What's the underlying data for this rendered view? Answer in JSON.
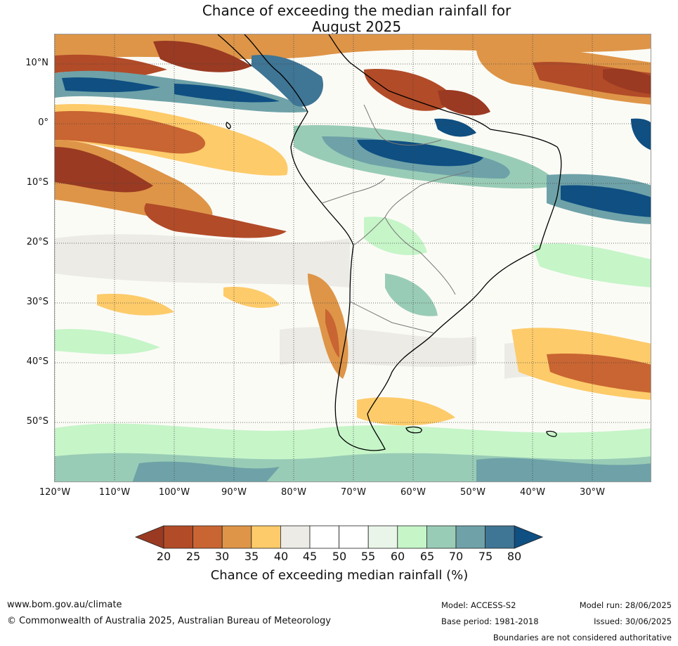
{
  "title": {
    "line1": "Chance of exceeding the median rainfall for",
    "line2": "August 2025"
  },
  "lat_labels": [
    "10°N",
    "0°",
    "10°S",
    "20°S",
    "30°S",
    "40°S",
    "50°S"
  ],
  "lon_labels": [
    "120°W",
    "110°W",
    "100°W",
    "90°W",
    "80°W",
    "70°W",
    "60°W",
    "50°W",
    "40°W",
    "30°W"
  ],
  "colorbar": {
    "ticks": [
      "20",
      "25",
      "30",
      "35",
      "40",
      "45",
      "50",
      "55",
      "60",
      "65",
      "70",
      "75",
      "80"
    ],
    "colors": [
      "#9a3a22",
      "#b24b28",
      "#c96532",
      "#de9548",
      "#fdcb6a",
      "#ecebe6",
      "#ffffff",
      "#ffffff",
      "#e9f5e8",
      "#c6f5c8",
      "#99ccb6",
      "#6ea2a8",
      "#3f7595",
      "#0f4f82"
    ],
    "title": "Chance of exceeding median rainfall (%)"
  },
  "footer": {
    "url": "www.bom.gov.au/climate",
    "copyright": "© Commonwealth of Australia 2025, Australian Bureau of Meteorology",
    "model": "Model: ACCESS-S2",
    "base_period": "Base period: 1981-2018",
    "model_run": "Model run: 28/06/2025",
    "issued": "Issued: 30/06/2025",
    "disclaimer": "Boundaries are not considered authoritative"
  }
}
